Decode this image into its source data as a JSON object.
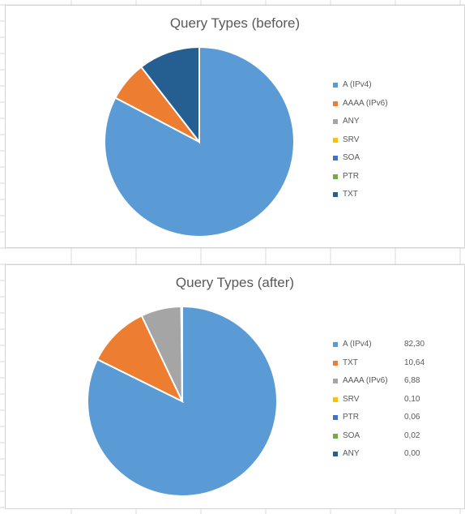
{
  "colors": {
    "gridline": "#d9d9d9",
    "background": "#ffffff"
  },
  "chart_data": [
    {
      "type": "pie",
      "title": "Query Types (before)",
      "legend_position": "right",
      "values_estimated": true,
      "series": [
        {
          "name": "A (IPv4)",
          "value": 82.7,
          "color": "#5b9bd5"
        },
        {
          "name": "AAAA (IPv6)",
          "value": 6.8,
          "color": "#ed7d31"
        },
        {
          "name": "ANY",
          "value": 0.0,
          "color": "#a5a5a5"
        },
        {
          "name": "SRV",
          "value": 0.0,
          "color": "#ffc000"
        },
        {
          "name": "SOA",
          "value": 0.0,
          "color": "#4472c4"
        },
        {
          "name": "PTR",
          "value": 0.0,
          "color": "#70ad47"
        },
        {
          "name": "TXT",
          "value": 10.5,
          "color": "#255e91"
        }
      ]
    },
    {
      "type": "pie",
      "title": "Query Types (after)",
      "legend_position": "right",
      "series": [
        {
          "name": "A (IPv4)",
          "value": 82.3,
          "label": "82,30",
          "color": "#5b9bd5"
        },
        {
          "name": "TXT",
          "value": 10.64,
          "label": "10,64",
          "color": "#ed7d31"
        },
        {
          "name": "AAAA (IPv6)",
          "value": 6.88,
          "label": "6,88",
          "color": "#a5a5a5"
        },
        {
          "name": "SRV",
          "value": 0.1,
          "label": "0,10",
          "color": "#ffc000"
        },
        {
          "name": "PTR",
          "value": 0.06,
          "label": "0,06",
          "color": "#4472c4"
        },
        {
          "name": "SOA",
          "value": 0.02,
          "label": "0,02",
          "color": "#70ad47"
        },
        {
          "name": "ANY",
          "value": 0.0,
          "label": "0,00",
          "color": "#255e91"
        }
      ]
    }
  ]
}
